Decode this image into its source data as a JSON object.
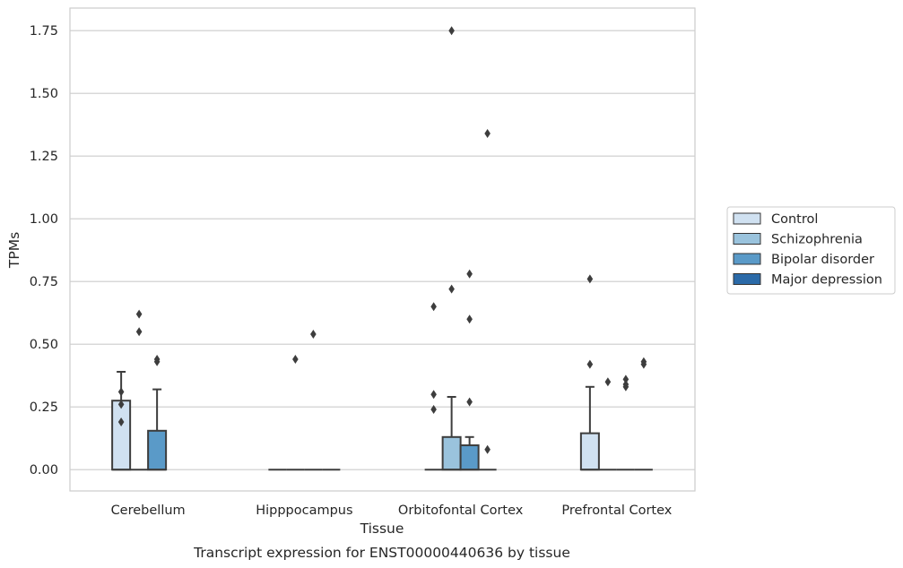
{
  "caption": "Transcript expression for ENST00000440636 by tissue",
  "chart_data": {
    "type": "box",
    "xlabel": "Tissue",
    "ylabel": "TPMs",
    "ylim": [
      -0.085,
      1.84
    ],
    "yticks": [
      "0.00",
      "0.25",
      "0.50",
      "0.75",
      "1.00",
      "1.25",
      "1.50",
      "1.75"
    ],
    "ytick_values": [
      0,
      0.25,
      0.5,
      0.75,
      1.0,
      1.25,
      1.5,
      1.75
    ],
    "grid": "horizontal",
    "legend_position": "right",
    "categories": [
      "Cerebellum",
      "Hipppocampus",
      "Orbitofontal Cortex",
      "Prefrontal Cortex"
    ],
    "series": [
      {
        "name": "Control",
        "color": "#d0e1f1",
        "boxes": [
          {
            "q1": 0,
            "median": 0,
            "q3": 0.275,
            "whisker_low": 0,
            "whisker_high": 0.39,
            "outliers": [
              0.31,
              0.26,
              0.19
            ]
          },
          {
            "q1": 0,
            "median": 0,
            "q3": 0,
            "whisker_low": 0,
            "whisker_high": 0,
            "outliers": []
          },
          {
            "q1": 0,
            "median": 0,
            "q3": 0,
            "whisker_low": 0,
            "whisker_high": 0,
            "outliers": [
              0.65,
              0.3,
              0.24
            ]
          },
          {
            "q1": 0,
            "median": 0,
            "q3": 0.145,
            "whisker_low": 0,
            "whisker_high": 0.33,
            "outliers": [
              0.76,
              0.42
            ]
          }
        ]
      },
      {
        "name": "Schizophrenia",
        "color": "#9ac3dd",
        "boxes": [
          {
            "q1": 0,
            "median": 0,
            "q3": 0,
            "whisker_low": 0,
            "whisker_high": 0,
            "outliers": [
              0.62,
              0.55
            ]
          },
          {
            "q1": 0,
            "median": 0,
            "q3": 0,
            "whisker_low": 0,
            "whisker_high": 0,
            "outliers": [
              0.44
            ]
          },
          {
            "q1": 0,
            "median": 0,
            "q3": 0.13,
            "whisker_low": 0,
            "whisker_high": 0.29,
            "outliers": [
              1.75,
              0.72
            ]
          },
          {
            "q1": 0,
            "median": 0,
            "q3": 0,
            "whisker_low": 0,
            "whisker_high": 0,
            "outliers": [
              0.35
            ]
          }
        ]
      },
      {
        "name": "Bipolar disorder",
        "color": "#5a9ac8",
        "boxes": [
          {
            "q1": 0,
            "median": 0,
            "q3": 0.155,
            "whisker_low": 0,
            "whisker_high": 0.32,
            "outliers": [
              0.44,
              0.43
            ]
          },
          {
            "q1": 0,
            "median": 0,
            "q3": 0,
            "whisker_low": 0,
            "whisker_high": 0,
            "outliers": [
              0.54
            ]
          },
          {
            "q1": 0,
            "median": 0,
            "q3": 0.097,
            "whisker_low": 0,
            "whisker_high": 0.13,
            "outliers": [
              0.78,
              0.6,
              0.27
            ]
          },
          {
            "q1": 0,
            "median": 0,
            "q3": 0,
            "whisker_low": 0,
            "whisker_high": 0,
            "outliers": [
              0.36,
              0.34,
              0.33
            ]
          }
        ]
      },
      {
        "name": "Major depression",
        "color": "#2b6aa8",
        "boxes": [
          null,
          {
            "q1": 0,
            "median": 0,
            "q3": 0,
            "whisker_low": 0,
            "whisker_high": 0,
            "outliers": []
          },
          {
            "q1": 0,
            "median": 0,
            "q3": 0,
            "whisker_low": 0,
            "whisker_high": 0,
            "outliers": [
              1.34,
              0.08
            ]
          },
          {
            "q1": 0,
            "median": 0,
            "q3": 0,
            "whisker_low": 0,
            "whisker_high": 0,
            "outliers": [
              0.43,
              0.42
            ]
          }
        ]
      }
    ]
  }
}
